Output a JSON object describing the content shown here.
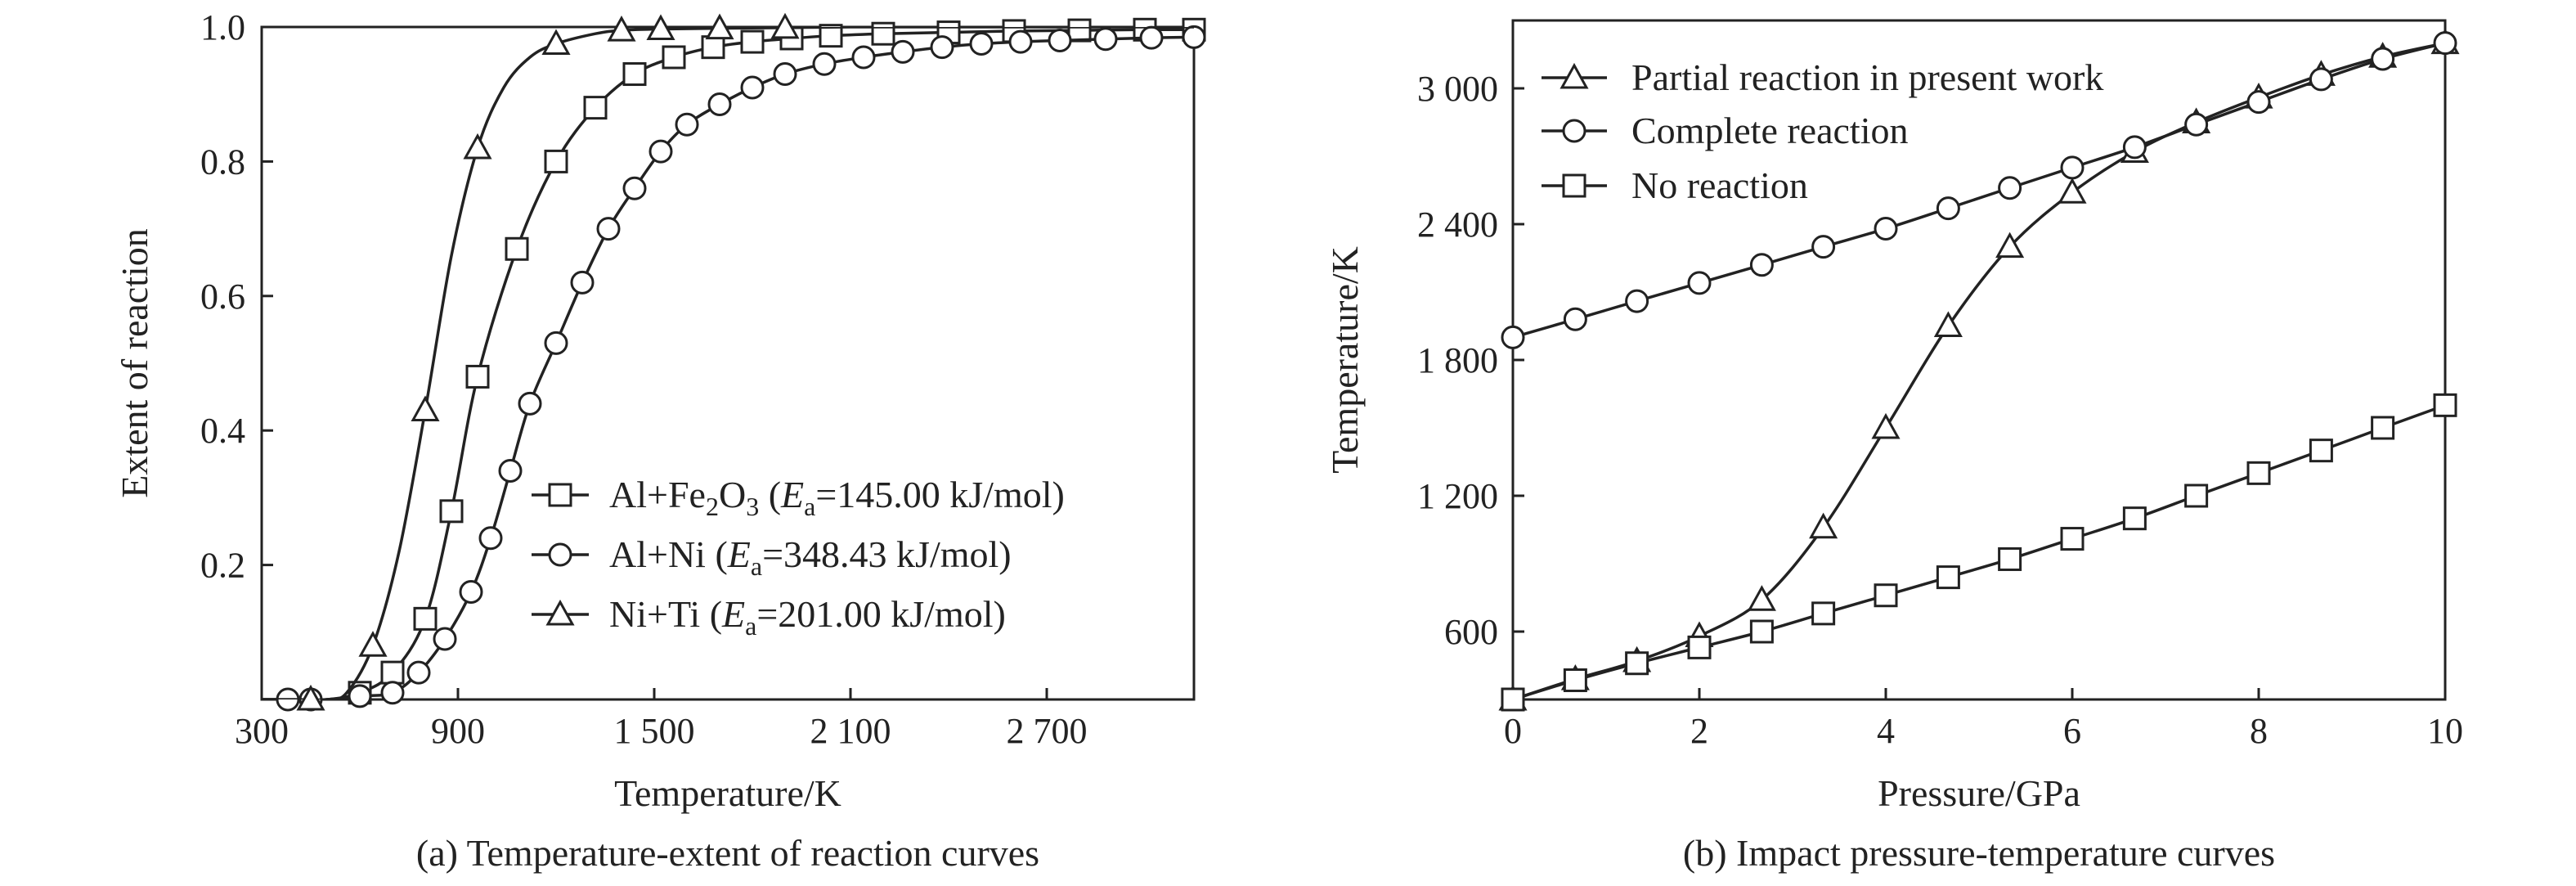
{
  "chart_data": [
    {
      "panel": "a",
      "type": "line",
      "caption": "(a) Temperature-extent of reaction curves",
      "xlabel": "Temperature/K",
      "ylabel": "Extent of reaction",
      "xlim": [
        300,
        3150
      ],
      "ylim": [
        0,
        1.0
      ],
      "xticks": [
        300,
        900,
        1500,
        2100,
        2700
      ],
      "xtick_labels": [
        "300",
        "900",
        "1 500",
        "2 100",
        "2 700"
      ],
      "yticks": [
        0.2,
        0.4,
        0.6,
        0.8,
        1.0
      ],
      "ytick_labels": [
        "0.2",
        "0.4",
        "0.6",
        "0.8",
        "1.0"
      ],
      "legend_position": "bottom-right",
      "series": [
        {
          "marker": "square",
          "legend": {
            "base": "Al+Fe",
            "sub1": "2",
            "mid": "O",
            "sub2": "3",
            "open": " (",
            "E": "E",
            "esub": "a",
            "rest": "=145.00 kJ/mol)"
          },
          "x": [
            300,
            400,
            500,
            600,
            700,
            800,
            880,
            960,
            1080,
            1200,
            1320,
            1440,
            1560,
            1680,
            1800,
            1920,
            2040,
            2200,
            2400,
            2600,
            2800,
            3000,
            3150
          ],
          "y": [
            0.0,
            0.0,
            0.0,
            0.01,
            0.04,
            0.12,
            0.28,
            0.48,
            0.67,
            0.8,
            0.88,
            0.93,
            0.955,
            0.97,
            0.978,
            0.983,
            0.987,
            0.99,
            0.992,
            0.994,
            0.995,
            0.996,
            0.996
          ],
          "markers_x": [
            600,
            700,
            800,
            880,
            960,
            1080,
            1200,
            1320,
            1440,
            1560,
            1680,
            1800,
            1920,
            2040,
            2200,
            2400,
            2600,
            2800,
            3000,
            3150
          ],
          "markers_y": [
            0.01,
            0.04,
            0.12,
            0.28,
            0.48,
            0.67,
            0.8,
            0.88,
            0.93,
            0.955,
            0.97,
            0.978,
            0.983,
            0.987,
            0.99,
            0.992,
            0.994,
            0.995,
            0.996,
            0.996
          ]
        },
        {
          "marker": "circle",
          "legend": {
            "base": "Al+Ni",
            "open": " (",
            "E": "E",
            "esub": "a",
            "rest": "=348.43 kJ/mol)"
          },
          "x": [
            300,
            400,
            500,
            600,
            700,
            780,
            860,
            940,
            1000,
            1060,
            1120,
            1200,
            1280,
            1360,
            1440,
            1520,
            1600,
            1700,
            1800,
            1900,
            2020,
            2140,
            2260,
            2380,
            2500,
            2620,
            2740,
            2880,
            3020,
            3150
          ],
          "y": [
            0.0,
            0.0,
            0.0,
            0.005,
            0.01,
            0.04,
            0.09,
            0.16,
            0.24,
            0.34,
            0.44,
            0.53,
            0.62,
            0.7,
            0.76,
            0.815,
            0.855,
            0.885,
            0.91,
            0.93,
            0.945,
            0.955,
            0.963,
            0.97,
            0.975,
            0.978,
            0.98,
            0.982,
            0.984,
            0.985
          ],
          "markers_x": [
            380,
            450,
            600,
            700,
            780,
            860,
            940,
            1000,
            1060,
            1120,
            1200,
            1280,
            1360,
            1440,
            1520,
            1600,
            1700,
            1800,
            1900,
            2020,
            2140,
            2260,
            2380,
            2500,
            2620,
            2740,
            2880,
            3020,
            3150
          ],
          "markers_y": [
            0.0,
            0.0,
            0.005,
            0.01,
            0.04,
            0.09,
            0.16,
            0.24,
            0.34,
            0.44,
            0.53,
            0.62,
            0.7,
            0.76,
            0.815,
            0.855,
            0.885,
            0.91,
            0.93,
            0.945,
            0.955,
            0.963,
            0.97,
            0.975,
            0.978,
            0.98,
            0.982,
            0.984,
            0.985
          ]
        },
        {
          "marker": "triangle",
          "legend": {
            "base": "Ni+Ti",
            "open": " (",
            "E": "E",
            "esub": "a",
            "rest": "=201.00 kJ/mol)"
          },
          "x": [
            300,
            400,
            500,
            560,
            640,
            720,
            800,
            880,
            960,
            1040,
            1120,
            1200,
            1320,
            1400,
            1520,
            1700,
            1900,
            2100,
            2400,
            2700,
            3150
          ],
          "y": [
            0.0,
            0.0,
            0.0,
            0.01,
            0.08,
            0.22,
            0.43,
            0.66,
            0.82,
            0.91,
            0.955,
            0.975,
            0.99,
            0.995,
            0.997,
            0.998,
            0.999,
            1.0,
            1.0,
            1.0,
            1.0
          ],
          "markers_x": [
            450,
            640,
            800,
            960,
            1200,
            1400,
            1520,
            1700,
            1900
          ],
          "markers_y": [
            0.0,
            0.08,
            0.43,
            0.82,
            0.975,
            0.995,
            0.997,
            0.998,
            0.999
          ]
        }
      ]
    },
    {
      "panel": "b",
      "type": "line",
      "caption": "(b) Impact pressure-temperature curves",
      "xlabel": "Pressure/GPa",
      "ylabel": "Temperature/K",
      "xlim": [
        0,
        10
      ],
      "ylim": [
        300,
        3300
      ],
      "xticks": [
        0,
        2,
        4,
        6,
        8,
        10
      ],
      "xtick_labels": [
        "0",
        "2",
        "4",
        "6",
        "8",
        "10"
      ],
      "yticks": [
        600,
        1200,
        1800,
        2400,
        3000
      ],
      "ytick_labels": [
        "600",
        "1 200",
        "1 800",
        "2 400",
        "3 000"
      ],
      "legend_position": "top-left",
      "series": [
        {
          "marker": "triangle",
          "name": "Partial reaction in present work",
          "x": [
            0,
            0.67,
            1.33,
            2.0,
            2.67,
            3.33,
            4.0,
            4.67,
            5.33,
            6.0,
            6.67,
            7.33,
            8.0,
            8.67,
            9.33,
            10.0
          ],
          "y": [
            300,
            390,
            470,
            580,
            740,
            1060,
            1500,
            1950,
            2300,
            2540,
            2720,
            2850,
            2960,
            3060,
            3140,
            3200
          ],
          "markers_x": [
            0,
            0.67,
            1.33,
            2.0,
            2.67,
            3.33,
            4.0,
            4.67,
            5.33,
            6.0,
            6.67,
            7.33,
            8.0,
            8.67,
            9.33,
            10.0
          ],
          "markers_y": [
            300,
            390,
            470,
            580,
            740,
            1060,
            1500,
            1950,
            2300,
            2540,
            2720,
            2850,
            2960,
            3060,
            3140,
            3200
          ]
        },
        {
          "marker": "circle",
          "name": "Complete reaction",
          "x": [
            0,
            0.67,
            1.33,
            2.0,
            2.67,
            3.33,
            4.0,
            4.67,
            5.33,
            6.0,
            6.67,
            7.33,
            8.0,
            8.67,
            9.33,
            10.0
          ],
          "y": [
            1900,
            1980,
            2060,
            2140,
            2220,
            2300,
            2380,
            2470,
            2560,
            2650,
            2740,
            2840,
            2940,
            3040,
            3130,
            3200
          ],
          "markers_x": [
            0,
            0.67,
            1.33,
            2.0,
            2.67,
            3.33,
            4.0,
            4.67,
            5.33,
            6.0,
            6.67,
            7.33,
            8.0,
            8.67,
            9.33,
            10.0
          ],
          "markers_y": [
            1900,
            1980,
            2060,
            2140,
            2220,
            2300,
            2380,
            2470,
            2560,
            2650,
            2740,
            2840,
            2940,
            3040,
            3130,
            3200
          ]
        },
        {
          "marker": "square",
          "name": "No reaction",
          "x": [
            0,
            0.67,
            1.33,
            2.0,
            2.67,
            3.33,
            4.0,
            4.67,
            5.33,
            6.0,
            6.67,
            7.33,
            8.0,
            8.67,
            9.33,
            10.0
          ],
          "y": [
            300,
            385,
            460,
            530,
            600,
            680,
            760,
            840,
            920,
            1010,
            1100,
            1200,
            1300,
            1400,
            1500,
            1600
          ],
          "markers_x": [
            0,
            0.67,
            1.33,
            2.0,
            2.67,
            3.33,
            4.0,
            4.67,
            5.33,
            6.0,
            6.67,
            7.33,
            8.0,
            8.67,
            9.33,
            10.0
          ],
          "markers_y": [
            300,
            385,
            460,
            530,
            600,
            680,
            760,
            840,
            920,
            1010,
            1100,
            1200,
            1300,
            1400,
            1500,
            1600
          ]
        }
      ]
    }
  ]
}
